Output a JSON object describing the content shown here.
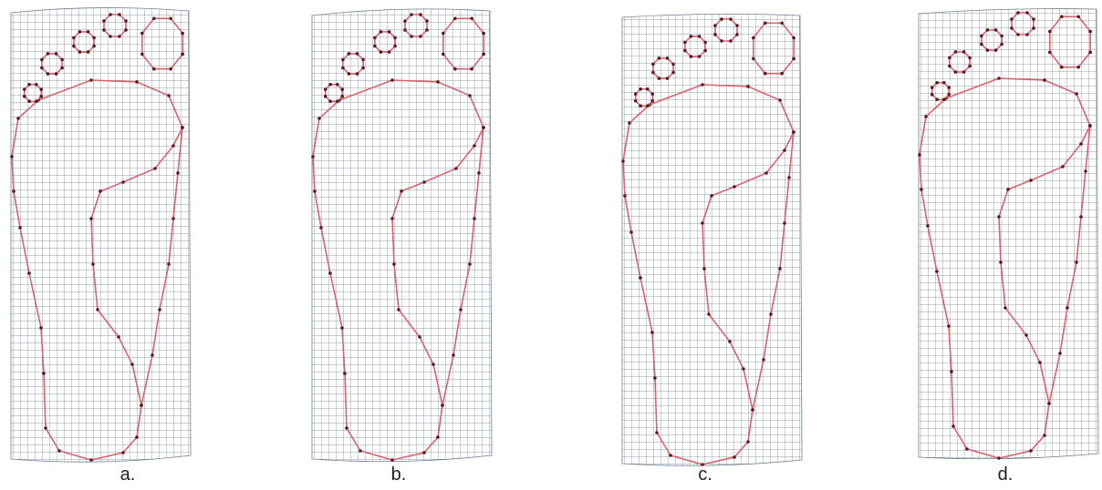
{
  "panels": [
    {
      "label": "a."
    },
    {
      "label": "b."
    },
    {
      "label": "c."
    },
    {
      "label": "d."
    }
  ]
}
